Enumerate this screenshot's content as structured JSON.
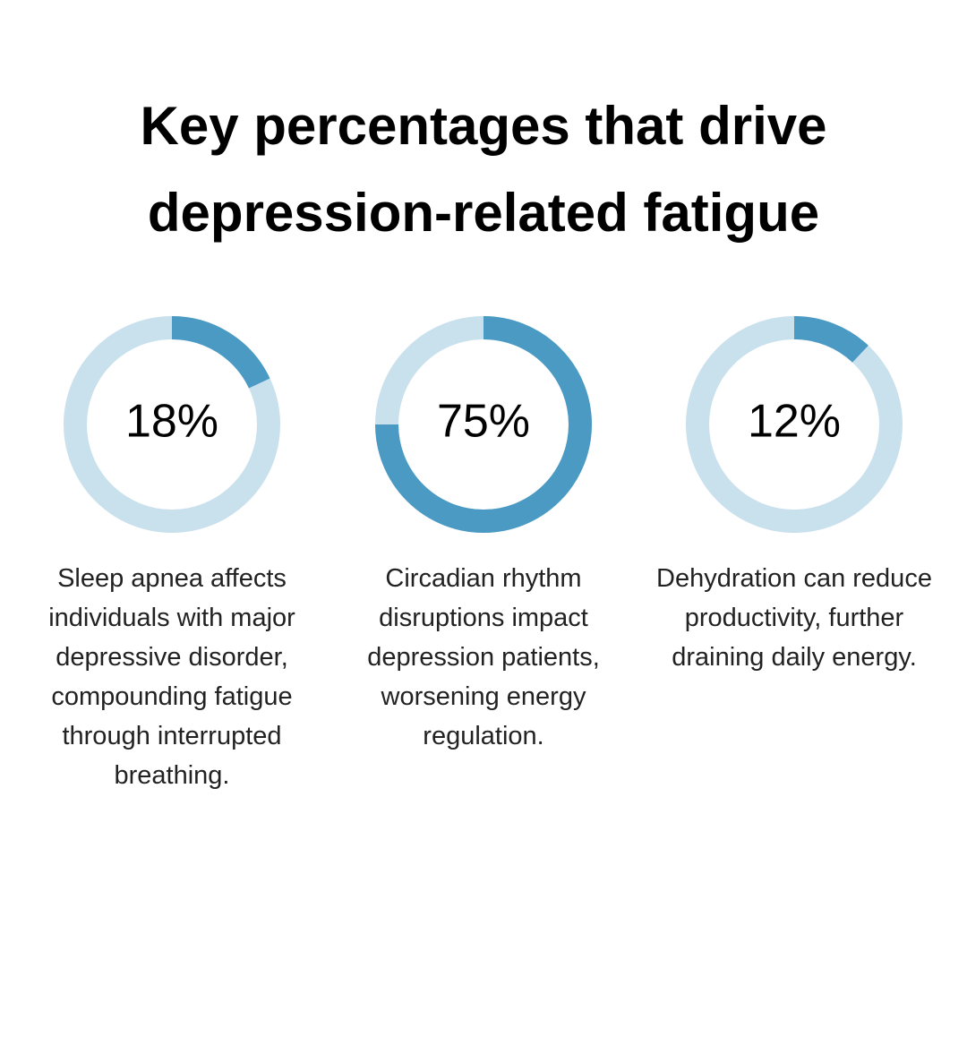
{
  "title": "Key percentages that drive depression-related fatigue",
  "chart_data": [
    {
      "type": "donut",
      "values": [
        18
      ],
      "value_labels": [
        "18%"
      ],
      "color": "#4a9ac4",
      "track_color": "#c9e0ed",
      "description": "Sleep apnea affects individuals with major depressive disorder, compounding fatigue through interrupted breathing."
    },
    {
      "type": "donut",
      "values": [
        75
      ],
      "value_labels": [
        "75%"
      ],
      "color": "#4a9ac4",
      "track_color": "#c9e0ed",
      "description": "Circadian rhythm disruptions impact depression patients, worsening energy regulation."
    },
    {
      "type": "donut",
      "values": [
        12
      ],
      "value_labels": [
        "12%"
      ],
      "color": "#4a9ac4",
      "track_color": "#c9e0ed",
      "description": "Dehydration can reduce productivity, further draining daily energy."
    }
  ]
}
